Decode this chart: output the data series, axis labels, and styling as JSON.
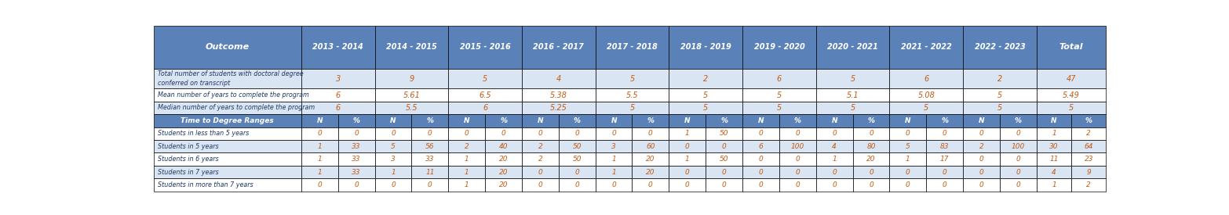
{
  "header_bg": "#5B82B8",
  "header_text_color": "#FFFFFF",
  "row_bg_light": "#D9E5F3",
  "row_bg_white": "#FFFFFF",
  "border_color": "#000000",
  "text_color_dark": "#1F3864",
  "text_color_orange": "#C55A11",
  "col_headers": [
    "Outcome",
    "2013 - 2014",
    "2014 - 2015",
    "2015 - 2016",
    "2016 - 2017",
    "2017 - 2018",
    "2018 - 2019",
    "2019 - 2020",
    "2020 - 2021",
    "2021 - 2022",
    "2022 - 2023",
    "Total"
  ],
  "rows": [
    {
      "label": "Total number of students with doctoral degree\nconferred on transcript",
      "values": [
        "3",
        "9",
        "5",
        "4",
        "5",
        "2",
        "6",
        "5",
        "6",
        "2",
        "47"
      ],
      "type": "single",
      "bg": "light"
    },
    {
      "label": "Mean number of years to complete the program",
      "values": [
        "6",
        "5.61",
        "6.5",
        "5.38",
        "5.5",
        "5",
        "5",
        "5.1",
        "5.08",
        "5",
        "5.49"
      ],
      "type": "single",
      "bg": "white"
    },
    {
      "label": "Median number of years to complete the program",
      "values": [
        "6",
        "5.5",
        "6",
        "5.25",
        "5",
        "5",
        "5",
        "5",
        "5",
        "5",
        "5"
      ],
      "type": "single",
      "bg": "light"
    },
    {
      "label": "Time to Degree Ranges",
      "values": null,
      "type": "subheader",
      "bg": "header"
    },
    {
      "label": "Students in less than 5 years",
      "values": [
        [
          "0",
          "0"
        ],
        [
          "0",
          "0"
        ],
        [
          "0",
          "0"
        ],
        [
          "0",
          "0"
        ],
        [
          "0",
          "0"
        ],
        [
          "1",
          "50"
        ],
        [
          "0",
          "0"
        ],
        [
          "0",
          "0"
        ],
        [
          "0",
          "0"
        ],
        [
          "0",
          "0"
        ],
        [
          "1",
          "2"
        ]
      ],
      "type": "np",
      "bg": "white"
    },
    {
      "label": "Students in 5 years",
      "values": [
        [
          "1",
          "33"
        ],
        [
          "5",
          "56"
        ],
        [
          "2",
          "40"
        ],
        [
          "2",
          "50"
        ],
        [
          "3",
          "60"
        ],
        [
          "0",
          "0"
        ],
        [
          "6",
          "100"
        ],
        [
          "4",
          "80"
        ],
        [
          "5",
          "83"
        ],
        [
          "2",
          "100"
        ],
        [
          "30",
          "64"
        ]
      ],
      "type": "np",
      "bg": "light"
    },
    {
      "label": "Students in 6 years",
      "values": [
        [
          "1",
          "33"
        ],
        [
          "3",
          "33"
        ],
        [
          "1",
          "20"
        ],
        [
          "2",
          "50"
        ],
        [
          "1",
          "20"
        ],
        [
          "1",
          "50"
        ],
        [
          "0",
          "0"
        ],
        [
          "1",
          "20"
        ],
        [
          "1",
          "17"
        ],
        [
          "0",
          "0"
        ],
        [
          "11",
          "23"
        ]
      ],
      "type": "np",
      "bg": "white"
    },
    {
      "label": "Students in 7 years",
      "values": [
        [
          "1",
          "33"
        ],
        [
          "1",
          "11"
        ],
        [
          "1",
          "20"
        ],
        [
          "0",
          "0"
        ],
        [
          "1",
          "20"
        ],
        [
          "0",
          "0"
        ],
        [
          "0",
          "0"
        ],
        [
          "0",
          "0"
        ],
        [
          "0",
          "0"
        ],
        [
          "0",
          "0"
        ],
        [
          "4",
          "9"
        ]
      ],
      "type": "np",
      "bg": "light"
    },
    {
      "label": "Students in more than 7 years",
      "values": [
        [
          "0",
          "0"
        ],
        [
          "0",
          "0"
        ],
        [
          "1",
          "20"
        ],
        [
          "0",
          "0"
        ],
        [
          "0",
          "0"
        ],
        [
          "0",
          "0"
        ],
        [
          "0",
          "0"
        ],
        [
          "0",
          "0"
        ],
        [
          "0",
          "0"
        ],
        [
          "0",
          "0"
        ],
        [
          "1",
          "2"
        ]
      ],
      "type": "np",
      "bg": "white"
    }
  ]
}
